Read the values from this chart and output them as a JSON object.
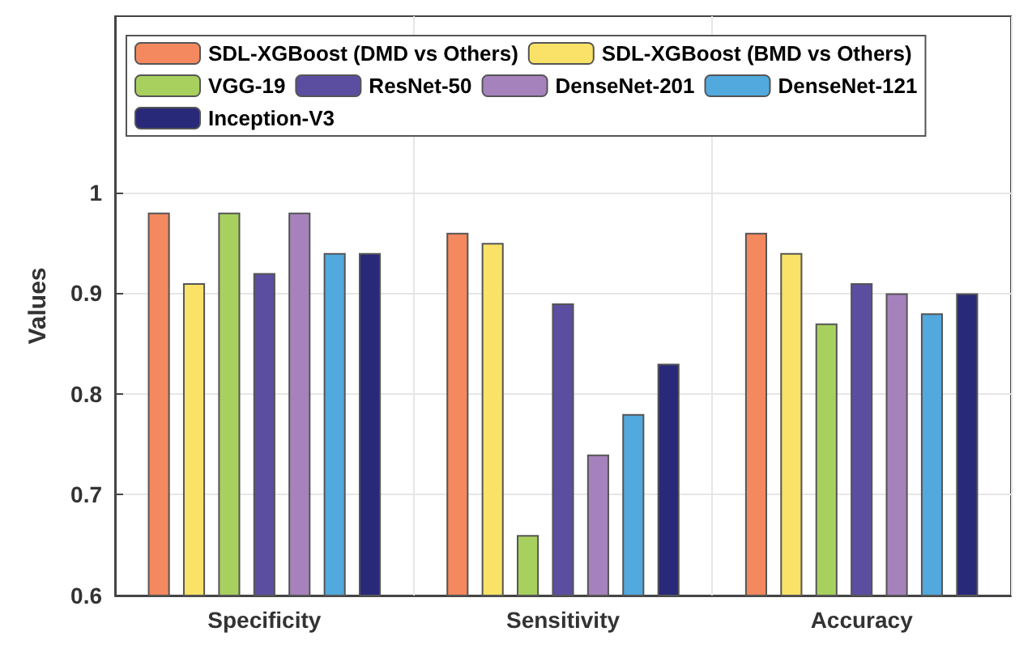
{
  "chart_data": {
    "type": "bar",
    "ylabel": "Values",
    "categories": [
      "Specificity",
      "Sensitivity",
      "Accuracy"
    ],
    "series": [
      {
        "name": "SDL-XGBoost (DMD vs Others)",
        "color": "#f4895f",
        "values": [
          0.98,
          0.96,
          0.96
        ]
      },
      {
        "name": "SDL-XGBoost (BMD vs Others)",
        "color": "#f9e267",
        "values": [
          0.91,
          0.95,
          0.94
        ]
      },
      {
        "name": "VGG-19",
        "color": "#a8d05f",
        "values": [
          0.98,
          0.66,
          0.87
        ]
      },
      {
        "name": "ResNet-50",
        "color": "#5b4ea1",
        "values": [
          0.92,
          0.89,
          0.91
        ]
      },
      {
        "name": "DenseNet-201",
        "color": "#a682bd",
        "values": [
          0.98,
          0.74,
          0.9
        ]
      },
      {
        "name": "DenseNet-121",
        "color": "#52a9de",
        "values": [
          0.94,
          0.78,
          0.88
        ]
      },
      {
        "name": "Inception-V3",
        "color": "#29297a",
        "values": [
          0.94,
          0.83,
          0.9
        ]
      }
    ],
    "ylim": [
      0.6,
      1.175
    ],
    "yticks": [
      0.6,
      0.7,
      0.8,
      0.9,
      1
    ],
    "grid": true,
    "legend": "top"
  }
}
